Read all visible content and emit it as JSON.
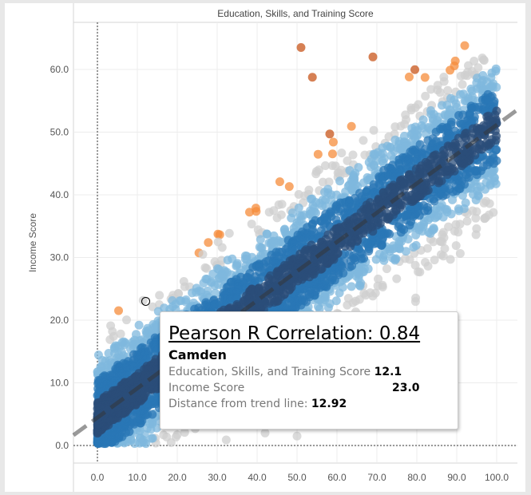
{
  "chart_data": {
    "type": "scatter",
    "title": "Education, Skills, and Training Score",
    "xlabel": "Education, Skills, and Training Score",
    "ylabel": "Income Score",
    "xlim": [
      -6,
      106
    ],
    "ylim": [
      -3,
      67
    ],
    "xticks": [
      "0.0",
      "10.0",
      "20.0",
      "30.0",
      "40.0",
      "50.0",
      "60.0",
      "70.0",
      "80.0",
      "90.0",
      "100.0"
    ],
    "yticks": [
      "0.0",
      "10.0",
      "20.0",
      "30.0",
      "40.0",
      "50.0",
      "60.0"
    ],
    "trend_line": {
      "slope": 0.467,
      "intercept": 4.45,
      "style": "dashed"
    },
    "point_count": 4000,
    "residual_bands": [
      {
        "min": 18,
        "color": "#c8561b"
      },
      {
        "min": 14,
        "color": "#f58c3b"
      },
      {
        "min": 10,
        "color": "#cfcfcf"
      },
      {
        "min": 6,
        "color": "#7fb8de"
      },
      {
        "min": 2.5,
        "color": "#2a77b6"
      },
      {
        "min": -2.5,
        "color": "#2b4d7a"
      },
      {
        "min": -6,
        "color": "#2a77b6"
      },
      {
        "min": -10,
        "color": "#7fb8de"
      },
      {
        "min": -100,
        "color": "#cfcfcf"
      }
    ],
    "outliers": [
      {
        "x": 51,
        "y": 63.5
      },
      {
        "x": 69,
        "y": 62
      },
      {
        "x": 92,
        "y": 63.8
      },
      {
        "x": 50,
        "y": 1.5
      },
      {
        "x": 42,
        "y": 2
      }
    ],
    "highlighted_point": {
      "name": "Camden",
      "x": 12.1,
      "y": 23.0
    }
  },
  "tooltip": {
    "title": "Pearson R Correlation: 0.84",
    "name": "Camden",
    "x_label": "Education, Skills, and Training Score",
    "x_value": "12.1",
    "y_label": "Income Score",
    "y_value": "23.0",
    "dist_label": "Distance from trend line:",
    "dist_value": "12.92"
  }
}
